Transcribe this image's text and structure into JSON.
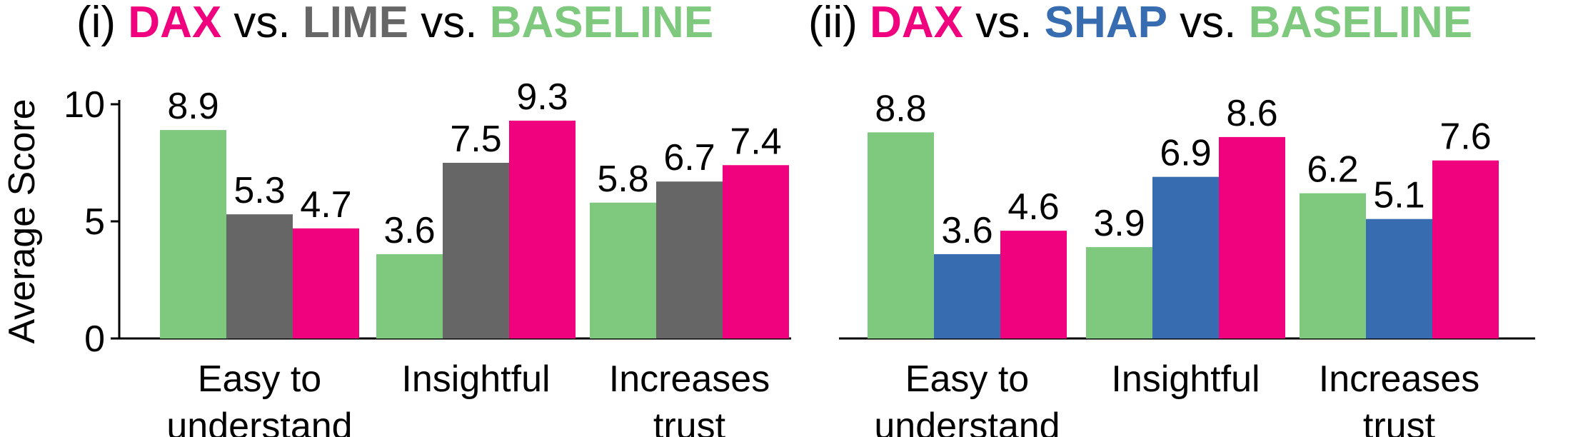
{
  "colors": {
    "baseline": "#7fc97f",
    "lime": "#666666",
    "shap": "#386cb0",
    "dax": "#f0027f",
    "text": "#000000"
  },
  "chart_data": [
    {
      "type": "bar",
      "title_parts": [
        {
          "text": "(i) ",
          "color": "#000000",
          "bold": false
        },
        {
          "text": "DAX",
          "color": "#f0027f",
          "bold": true
        },
        {
          "text": " vs. ",
          "color": "#000000",
          "bold": false
        },
        {
          "text": "LIME",
          "color": "#666666",
          "bold": true
        },
        {
          "text": " vs. ",
          "color": "#000000",
          "bold": false
        },
        {
          "text": "BASELINE",
          "color": "#7fc97f",
          "bold": true
        }
      ],
      "ylabel": "Average Score",
      "ylim": [
        0,
        10
      ],
      "yticks": [
        "0",
        "5",
        "10"
      ],
      "categories": [
        [
          "Easy to",
          "understand"
        ],
        [
          "Insightful"
        ],
        [
          "Increases",
          "trust"
        ]
      ],
      "series": [
        {
          "name": "BASELINE",
          "color": "#7fc97f",
          "values": [
            8.9,
            3.6,
            5.8
          ]
        },
        {
          "name": "LIME",
          "color": "#666666",
          "values": [
            5.3,
            7.5,
            6.7
          ]
        },
        {
          "name": "DAX",
          "color": "#f0027f",
          "values": [
            4.7,
            9.3,
            7.4
          ]
        }
      ],
      "value_labels": [
        [
          "8.9",
          "3.6",
          "5.8"
        ],
        [
          "5.3",
          "7.5",
          "6.7"
        ],
        [
          "4.7",
          "9.3",
          "7.4"
        ]
      ]
    },
    {
      "type": "bar",
      "title_parts": [
        {
          "text": "(ii) ",
          "color": "#000000",
          "bold": false
        },
        {
          "text": "DAX",
          "color": "#f0027f",
          "bold": true
        },
        {
          "text": " vs. ",
          "color": "#000000",
          "bold": false
        },
        {
          "text": "SHAP",
          "color": "#386cb0",
          "bold": true
        },
        {
          "text": " vs. ",
          "color": "#000000",
          "bold": false
        },
        {
          "text": "BASELINE",
          "color": "#7fc97f",
          "bold": true
        }
      ],
      "ylabel": "",
      "ylim": [
        0,
        10
      ],
      "yticks": [],
      "categories": [
        [
          "Easy to",
          "understand"
        ],
        [
          "Insightful"
        ],
        [
          "Increases",
          "trust"
        ]
      ],
      "series": [
        {
          "name": "BASELINE",
          "color": "#7fc97f",
          "values": [
            8.8,
            3.9,
            6.2
          ]
        },
        {
          "name": "SHAP",
          "color": "#386cb0",
          "values": [
            3.6,
            6.9,
            5.1
          ]
        },
        {
          "name": "DAX",
          "color": "#f0027f",
          "values": [
            4.6,
            8.6,
            7.6
          ]
        }
      ],
      "value_labels": [
        [
          "8.8",
          "3.9",
          "6.2"
        ],
        [
          "3.6",
          "6.9",
          "5.1"
        ],
        [
          "4.6",
          "8.6",
          "7.6"
        ]
      ]
    }
  ]
}
